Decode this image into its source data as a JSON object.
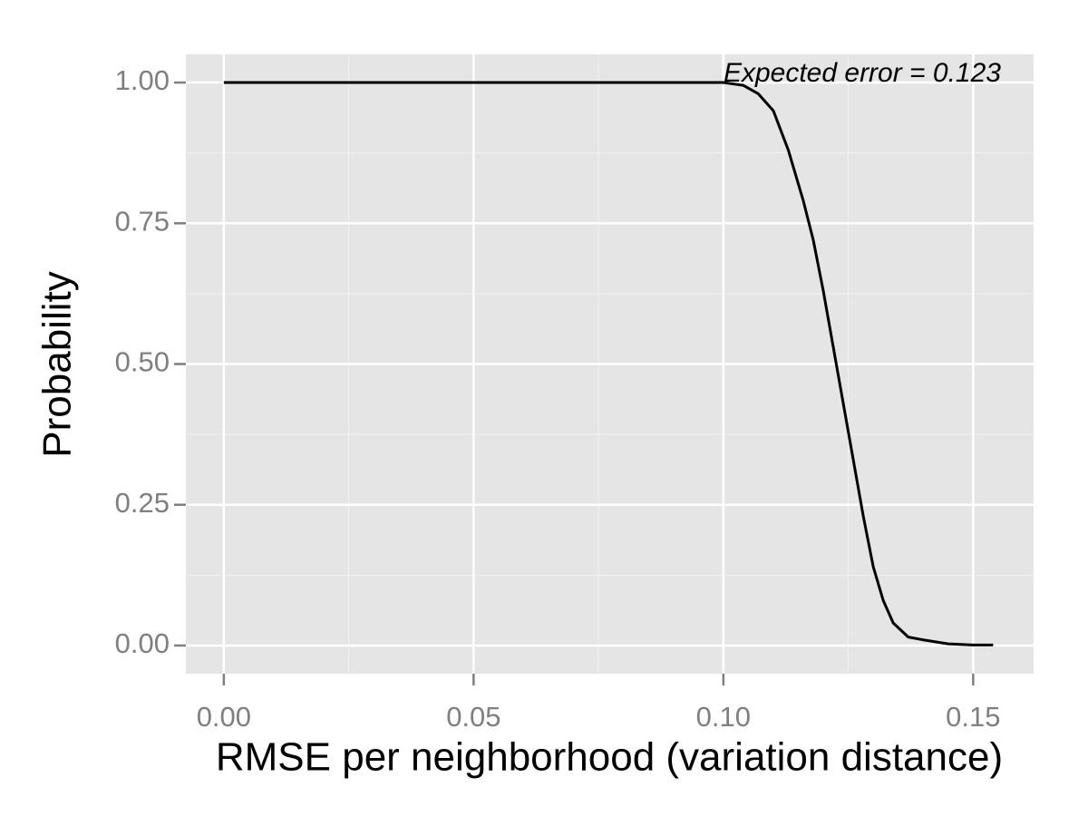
{
  "chart_data": {
    "type": "line",
    "xlabel": "RMSE per neighborhood (variation distance)",
    "ylabel": "Probability",
    "annotation": "Expected error = 0.123",
    "x": [
      0,
      0.02,
      0.04,
      0.06,
      0.08,
      0.1,
      0.104,
      0.107,
      0.11,
      0.113,
      0.116,
      0.118,
      0.12,
      0.122,
      0.124,
      0.126,
      0.128,
      0.13,
      0.132,
      0.134,
      0.137,
      0.14,
      0.145,
      0.15,
      0.154
    ],
    "values": [
      1,
      1,
      1,
      1,
      1,
      1,
      0.995,
      0.98,
      0.95,
      0.88,
      0.79,
      0.72,
      0.63,
      0.53,
      0.43,
      0.33,
      0.23,
      0.14,
      0.08,
      0.04,
      0.015,
      0.01,
      0.003,
      0.001,
      0.001
    ],
    "color": "#000000",
    "xlim": [
      -0.0076,
      0.1621
    ],
    "ylim": [
      -0.05,
      1.05
    ],
    "xticks": [
      {
        "value": 0,
        "label": "0.00"
      },
      {
        "value": 0.05,
        "label": "0.05"
      },
      {
        "value": 0.1,
        "label": "0.10"
      },
      {
        "value": 0.15,
        "label": "0.15"
      }
    ],
    "yticks": [
      {
        "value": 0,
        "label": "0.00"
      },
      {
        "value": 0.25,
        "label": "0.25"
      },
      {
        "value": 0.5,
        "label": "0.50"
      },
      {
        "value": 0.75,
        "label": "0.75"
      },
      {
        "value": 1,
        "label": "1.00"
      }
    ],
    "grid": true
  }
}
